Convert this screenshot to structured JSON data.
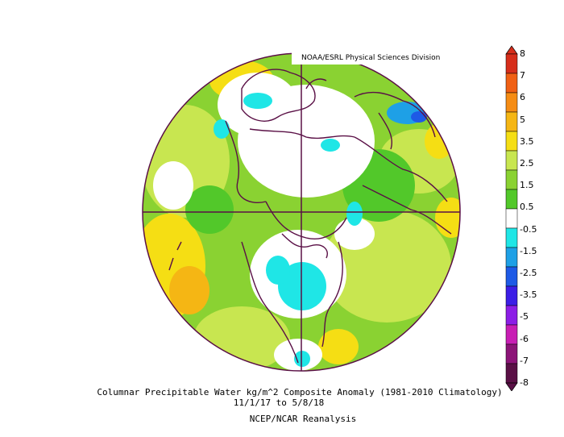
{
  "credit": "NOAA/ESRL Physical Sciences Division",
  "caption": {
    "title": "Columnar Precipitable Water kg/m^2 Composite Anomaly (1981-2010 Climatology)",
    "dates": "11/1/17  to 5/8/18",
    "source": "NCEP/NCAR Reanalysis"
  },
  "legend": {
    "labels": [
      "8",
      "7",
      "6",
      "5",
      "3.5",
      "2.5",
      "1.5",
      "0.5",
      "-0.5",
      "-1.5",
      "-2.5",
      "-3.5",
      "-5",
      "-6",
      "-7",
      "-8"
    ],
    "colors": [
      "#d62e1b",
      "#f06014",
      "#f58c14",
      "#f5b614",
      "#f5de14",
      "#c8e650",
      "#8ad232",
      "#52c82a",
      "#ffffff",
      "#1fe6e6",
      "#1ea0e6",
      "#1e5ae6",
      "#3c1ee6",
      "#8c1ee6",
      "#c81eb4",
      "#8c1478",
      "#5a1046"
    ]
  }
}
